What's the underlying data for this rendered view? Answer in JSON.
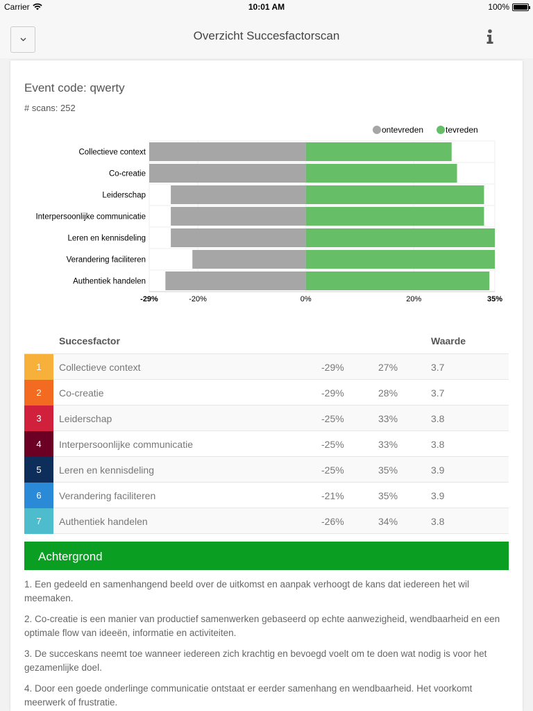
{
  "status_bar": {
    "carrier": "Carrier",
    "time": "10:01 AM",
    "battery": "100%"
  },
  "nav": {
    "title": "Overzicht Succesfactorscan",
    "dropdown_icon": "chevron-down-icon",
    "info_icon": "info-icon"
  },
  "event": {
    "code_label": "Event code: qwerty",
    "scans_label": "# scans: 252"
  },
  "chart_data": {
    "type": "bar",
    "orientation": "horizontal",
    "stacked": "diverging",
    "categories": [
      "Collectieve context",
      "Co-creatie",
      "Leiderschap",
      "Interpersoonlijke communicatie",
      "Leren en kennisdeling",
      "Verandering faciliteren",
      "Authentiek handelen"
    ],
    "series": [
      {
        "name": "ontevreden",
        "color": "#a6a6a6",
        "values": [
          -29,
          -29,
          -25,
          -25,
          -25,
          -21,
          -26
        ]
      },
      {
        "name": "tevreden",
        "color": "#66bf66",
        "values": [
          27,
          28,
          33,
          33,
          35,
          35,
          34
        ]
      }
    ],
    "xlim": [
      -29,
      35
    ],
    "x_ticks": [
      -29,
      -20,
      0,
      20,
      35
    ],
    "x_tick_labels": [
      "-29%",
      "-20%",
      "0%",
      "20%",
      "35%"
    ],
    "legend": "top-right",
    "grid": true
  },
  "table": {
    "header_factor": "Succesfactor",
    "header_value": "Waarde",
    "rows": [
      {
        "num": "1",
        "name": "Collectieve context",
        "neg": "-29%",
        "pos": "27%",
        "value": "3.7",
        "color": "#f7b13b"
      },
      {
        "num": "2",
        "name": "Co-creatie",
        "neg": "-29%",
        "pos": "28%",
        "value": "3.7",
        "color": "#f26b21"
      },
      {
        "num": "3",
        "name": "Leiderschap",
        "neg": "-25%",
        "pos": "33%",
        "value": "3.8",
        "color": "#d0203b"
      },
      {
        "num": "4",
        "name": "Interpersoonlijke communicatie",
        "neg": "-25%",
        "pos": "33%",
        "value": "3.8",
        "color": "#6b0024"
      },
      {
        "num": "5",
        "name": "Leren en kennisdeling",
        "neg": "-25%",
        "pos": "35%",
        "value": "3.9",
        "color": "#0d2d5a"
      },
      {
        "num": "6",
        "name": "Verandering faciliteren",
        "neg": "-21%",
        "pos": "35%",
        "value": "3.9",
        "color": "#2b8ad8"
      },
      {
        "num": "7",
        "name": "Authentiek handelen",
        "neg": "-26%",
        "pos": "34%",
        "value": "3.8",
        "color": "#4dbccc"
      }
    ]
  },
  "background": {
    "title": "Achtergrond",
    "color": "#0a9e22",
    "paragraphs": [
      "1. Een gedeeld en samenhangend beeld over de uitkomst en aanpak verhoogt de kans dat iedereen het wil meemaken.",
      "2. Co-creatie is een manier van productief samenwerken gebaseerd op echte aanwezigheid, wendbaarheid en een optimale flow van ideeën, informatie en activiteiten.",
      "3. De succeskans neemt toe wanneer iedereen zich krachtig en bevoegd voelt om te doen wat nodig is voor het gezamenlijke doel.",
      "4. Door een goede onderlinge communicatie ontstaat er eerder samenhang en wendbaarheid. Het voorkomt meerwerk of frustratie."
    ]
  }
}
